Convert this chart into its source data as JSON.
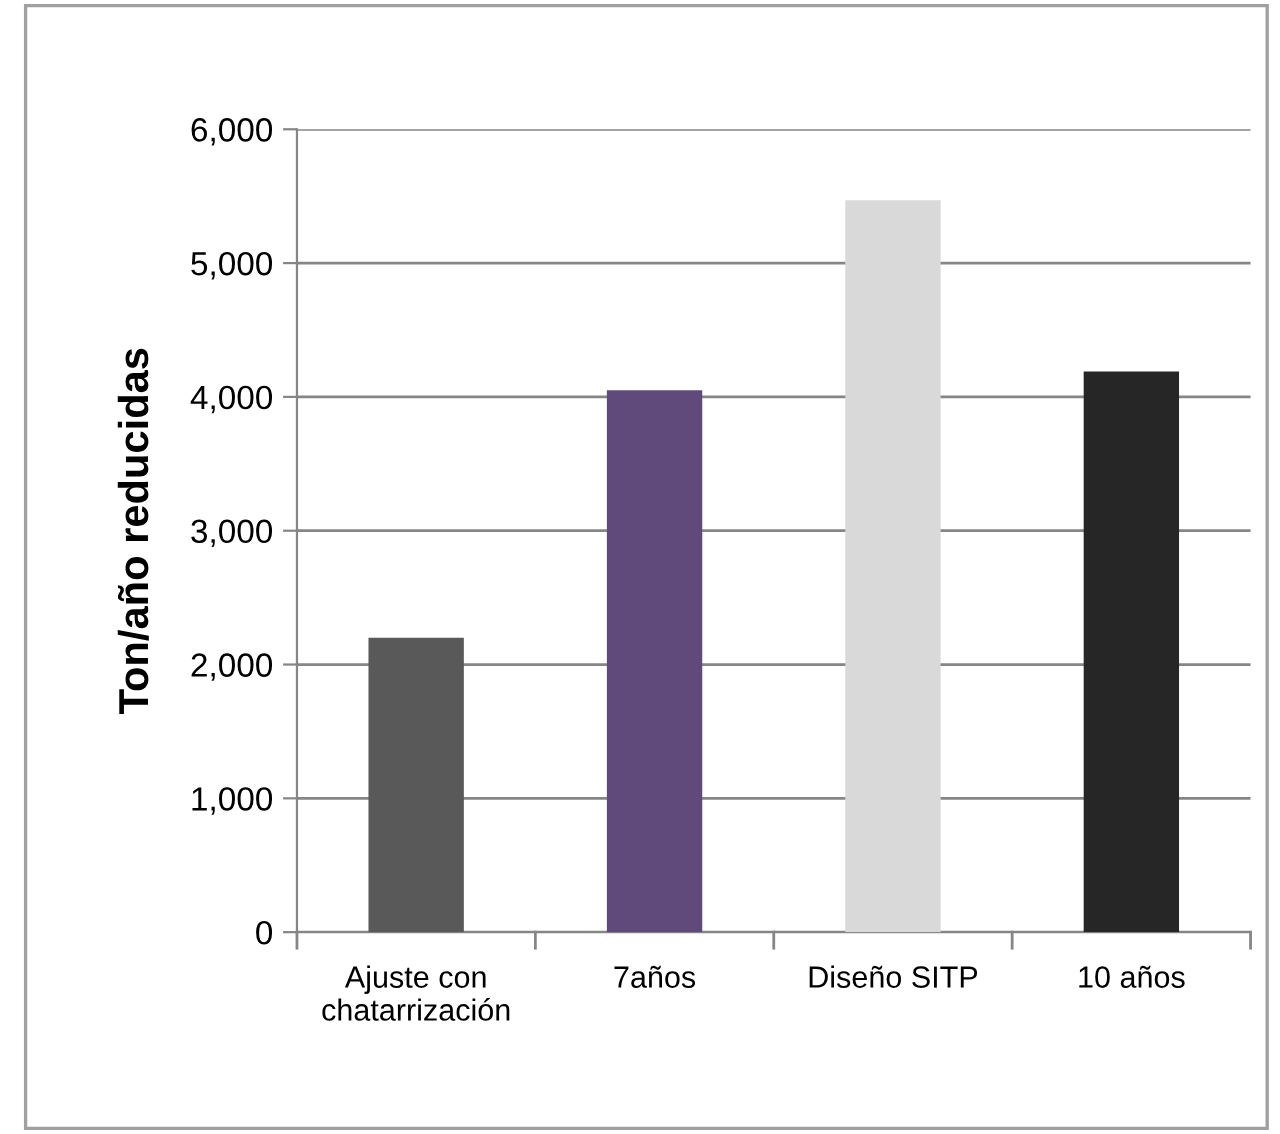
{
  "chart_data": {
    "type": "bar",
    "ylabel": "Ton/año reducidas",
    "categories": [
      "Ajuste con\nchatarrización",
      "7años",
      "Diseño SITP",
      "10 años"
    ],
    "values": [
      2200,
      4050,
      5470,
      4190
    ],
    "colors": [
      "#595959",
      "#604a7b",
      "#d9d9d9",
      "#262626"
    ],
    "ylim": [
      0,
      6000
    ],
    "yticks": [
      {
        "value": 0,
        "label": "0"
      },
      {
        "value": 1000,
        "label": "1,000"
      },
      {
        "value": 2000,
        "label": "2,000"
      },
      {
        "value": 3000,
        "label": "3,000"
      },
      {
        "value": 4000,
        "label": "4,000"
      },
      {
        "value": 5000,
        "label": "5,000"
      },
      {
        "value": 6000,
        "label": "6,000"
      }
    ],
    "grid": "y",
    "legend": false
  }
}
